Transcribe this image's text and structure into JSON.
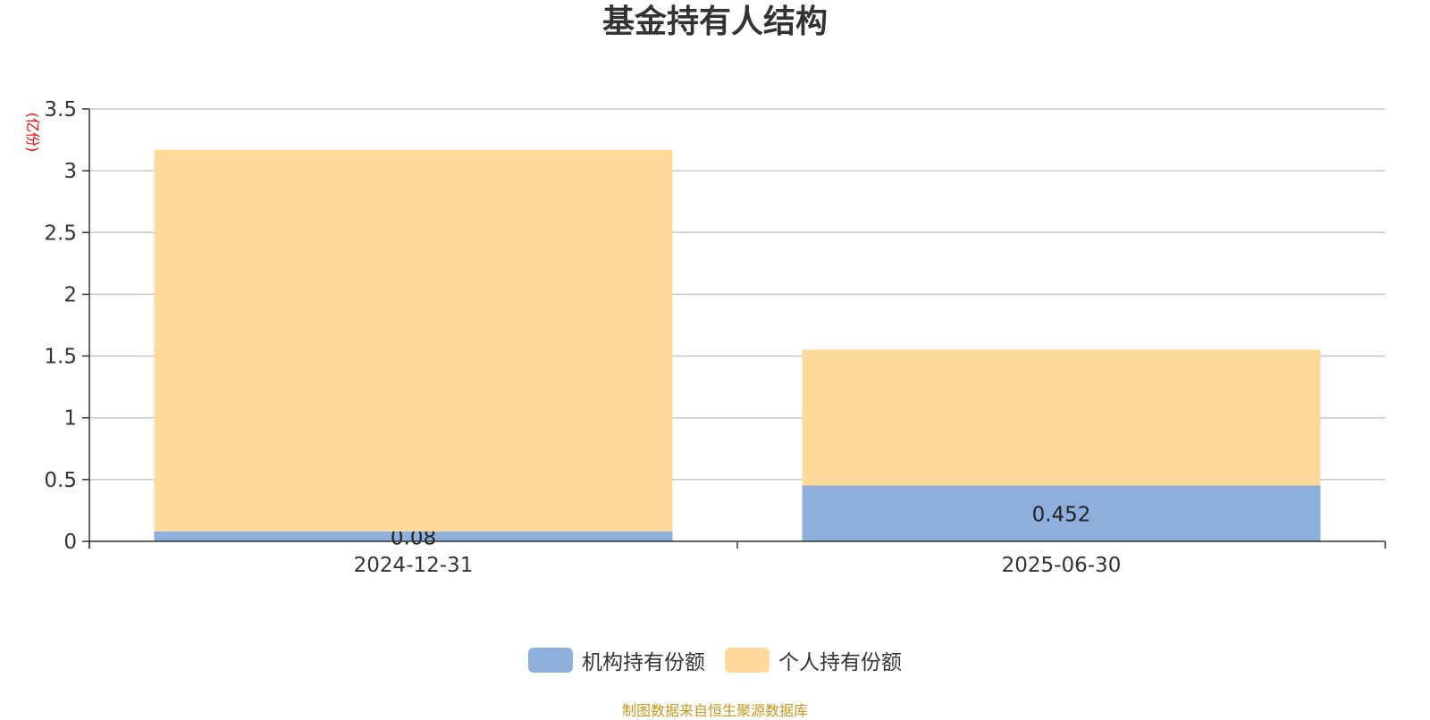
{
  "chart_data": {
    "type": "bar",
    "stacked": true,
    "title": "基金持有人结构",
    "ylabel": "(亿份)",
    "xlabel": "",
    "categories": [
      "2024-12-31",
      "2025-06-30"
    ],
    "series": [
      {
        "name": "机构持有份额",
        "values": [
          0.08,
          0.452
        ],
        "color": "#8eaedb",
        "show_labels": true
      },
      {
        "name": "个人持有份额",
        "values": [
          3.09,
          1.1
        ],
        "color": "#fdd99b",
        "show_labels": false
      }
    ],
    "ylim": [
      0,
      3.5
    ],
    "yticks": [
      "0",
      "0.5",
      "1",
      "1.5",
      "2",
      "2.5",
      "3",
      "3.5"
    ],
    "grid": true,
    "legend_position": "bottom"
  },
  "footer": {
    "source": "制图数据来自恒生聚源数据库"
  }
}
